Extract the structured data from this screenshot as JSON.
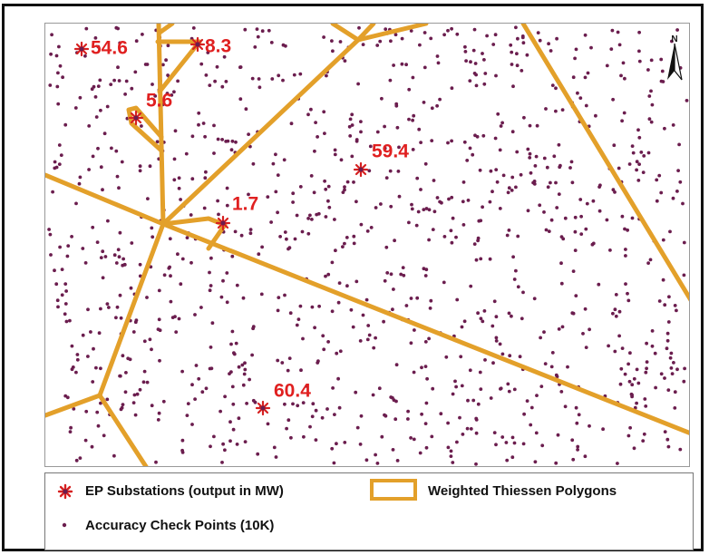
{
  "map": {
    "north_label": "N",
    "substations": [
      {
        "label": "54.6"
      },
      {
        "label": "8.3"
      },
      {
        "label": "5.6"
      },
      {
        "label": "59.4"
      },
      {
        "label": "1.7"
      },
      {
        "label": "60.4"
      }
    ],
    "colors": {
      "polygon_stroke": "#e3a02a",
      "point_color": "#6b1d4e",
      "substation_color": "#d62020",
      "label_color": "#e02020"
    }
  },
  "legend": {
    "substations_label": "EP Substations (output in MW)",
    "polygons_label": "Weighted Thiessen Polygons",
    "points_label": "Accuracy Check Points (10K)"
  }
}
